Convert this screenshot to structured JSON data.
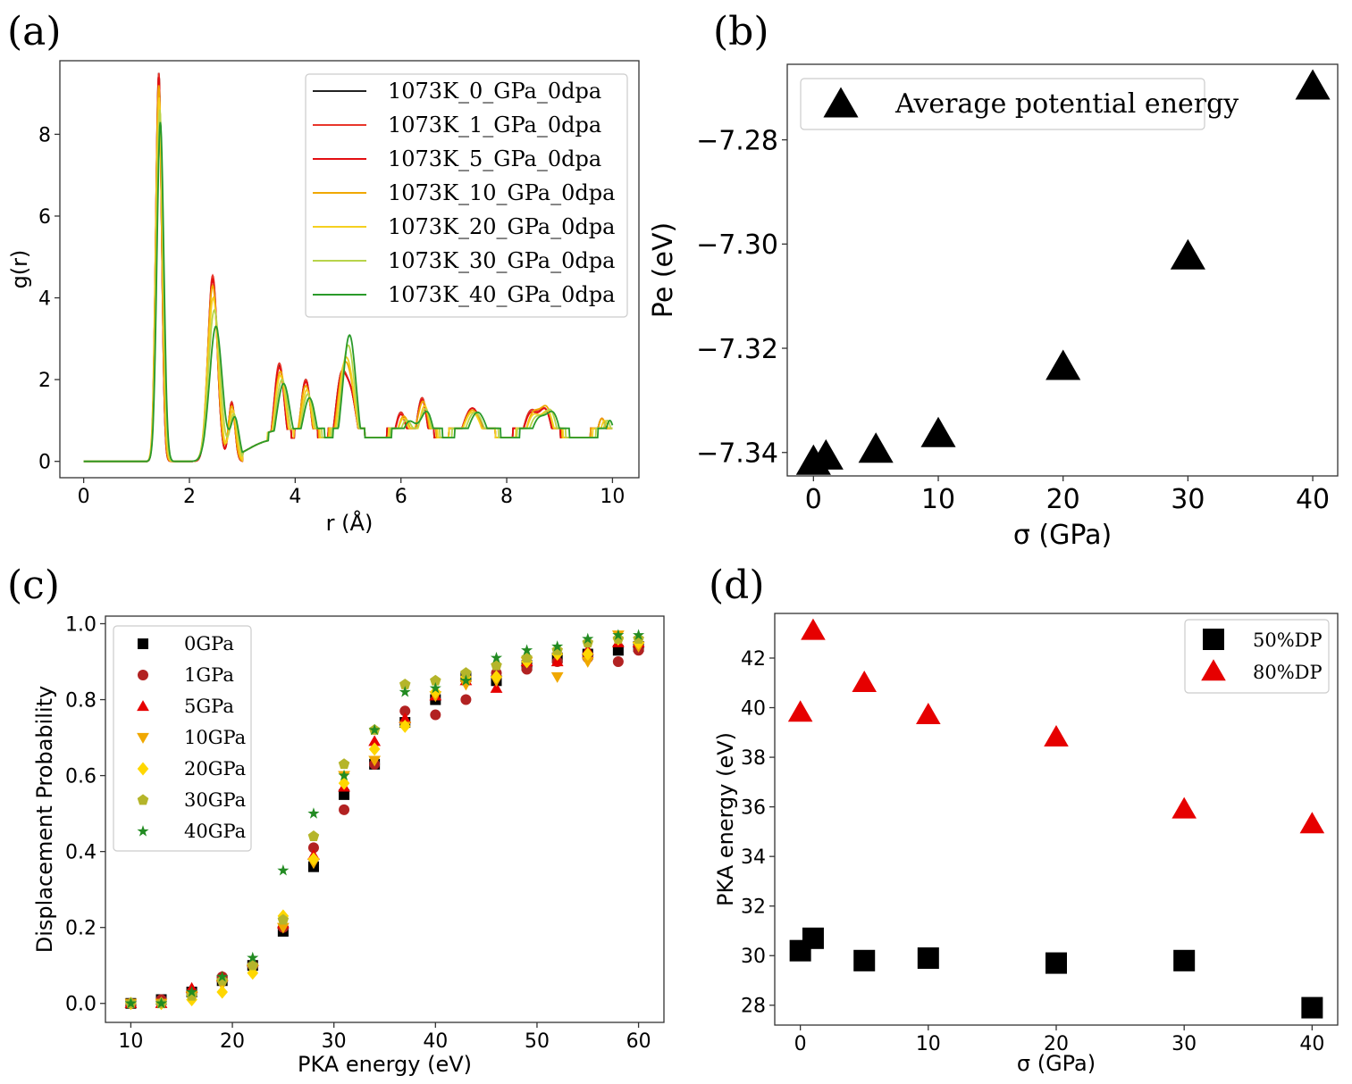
{
  "figure": {
    "panel_labels": [
      "(a)",
      "(b)",
      "(c)",
      "(d)"
    ]
  },
  "chart_data": [
    {
      "id": "a",
      "type": "line",
      "xlabel": "r (Å)",
      "ylabel": "g(r)",
      "xlim": [
        -0.45,
        10.5
      ],
      "ylim": [
        -0.4,
        9.8
      ],
      "xticks": [
        0,
        2,
        4,
        6,
        8,
        10
      ],
      "yticks": [
        0,
        2,
        4,
        6,
        8
      ],
      "legend_position": "upper-right",
      "series": [
        {
          "name": "1073K_0_GPa_0dpa",
          "color": "#222222",
          "peaks": [
            [
              1.42,
              9.5,
              0.055
            ],
            [
              2.44,
              4.5,
              0.09
            ],
            [
              2.8,
              1.45,
              0.06
            ],
            [
              3.7,
              2.35,
              0.1
            ],
            [
              4.2,
              2.0,
              0.1
            ],
            [
              4.85,
              1.7,
              0.1
            ],
            [
              5.05,
              1.6,
              0.12
            ],
            [
              6.0,
              1.2,
              0.12
            ],
            [
              6.4,
              1.55,
              0.1
            ],
            [
              7.35,
              1.3,
              0.2
            ],
            [
              8.45,
              1.2,
              0.15
            ],
            [
              8.75,
              1.1,
              0.12
            ],
            [
              9.8,
              1.05,
              0.1
            ]
          ]
        },
        {
          "name": "1073K_1_GPa_0dpa",
          "color": "#e8362b",
          "peaks": [
            [
              1.42,
              9.5,
              0.055
            ],
            [
              2.44,
              4.55,
              0.09
            ],
            [
              2.8,
              1.45,
              0.06
            ],
            [
              3.7,
              2.4,
              0.1
            ],
            [
              4.2,
              2.0,
              0.1
            ],
            [
              4.85,
              1.7,
              0.1
            ],
            [
              5.05,
              1.6,
              0.12
            ],
            [
              6.0,
              1.2,
              0.12
            ],
            [
              6.4,
              1.55,
              0.1
            ],
            [
              7.35,
              1.3,
              0.2
            ],
            [
              8.45,
              1.2,
              0.15
            ],
            [
              8.75,
              1.1,
              0.12
            ],
            [
              9.8,
              1.05,
              0.1
            ]
          ]
        },
        {
          "name": "1073K_5_GPa_0dpa",
          "color": "#e30e12",
          "peaks": [
            [
              1.42,
              9.4,
              0.055
            ],
            [
              2.44,
              4.45,
              0.09
            ],
            [
              2.8,
              1.4,
              0.06
            ],
            [
              3.7,
              2.3,
              0.1
            ],
            [
              4.2,
              1.95,
              0.1
            ],
            [
              4.85,
              1.65,
              0.1
            ],
            [
              5.05,
              1.6,
              0.12
            ],
            [
              6.0,
              1.15,
              0.12
            ],
            [
              6.4,
              1.5,
              0.1
            ],
            [
              7.35,
              1.3,
              0.2
            ],
            [
              8.45,
              1.15,
              0.15
            ],
            [
              8.75,
              1.1,
              0.12
            ],
            [
              9.8,
              1.05,
              0.1
            ]
          ]
        },
        {
          "name": "1073K_10_GPa_0dpa",
          "color": "#f0a800",
          "peaks": [
            [
              1.42,
              9.2,
              0.058
            ],
            [
              2.44,
              4.3,
              0.095
            ],
            [
              2.8,
              1.35,
              0.065
            ],
            [
              3.72,
              2.2,
              0.11
            ],
            [
              4.2,
              1.85,
              0.11
            ],
            [
              4.88,
              1.6,
              0.11
            ],
            [
              5.05,
              1.6,
              0.12
            ],
            [
              6.05,
              1.1,
              0.13
            ],
            [
              6.42,
              1.45,
              0.11
            ],
            [
              7.35,
              1.25,
              0.2
            ],
            [
              8.5,
              1.15,
              0.15
            ],
            [
              8.78,
              1.1,
              0.12
            ],
            [
              9.8,
              1.05,
              0.1
            ]
          ]
        },
        {
          "name": "1073K_20_GPa_0dpa",
          "color": "#f5d020",
          "peaks": [
            [
              1.43,
              8.9,
              0.06
            ],
            [
              2.45,
              4.0,
              0.1
            ],
            [
              2.82,
              1.25,
              0.07
            ],
            [
              3.72,
              2.1,
              0.11
            ],
            [
              4.22,
              1.75,
              0.11
            ],
            [
              4.9,
              1.55,
              0.11
            ],
            [
              5.05,
              1.6,
              0.12
            ],
            [
              6.05,
              1.05,
              0.13
            ],
            [
              6.45,
              1.35,
              0.11
            ],
            [
              7.35,
              1.2,
              0.2
            ],
            [
              8.5,
              1.1,
              0.15
            ],
            [
              8.8,
              1.05,
              0.12
            ],
            [
              9.85,
              1.0,
              0.1
            ]
          ]
        },
        {
          "name": "1073K_30_GPa_0dpa",
          "color": "#b8d44a",
          "peaks": [
            [
              1.44,
              8.6,
              0.062
            ],
            [
              2.47,
              3.7,
              0.11
            ],
            [
              2.84,
              1.15,
              0.075
            ],
            [
              3.75,
              2.0,
              0.12
            ],
            [
              4.24,
              1.65,
              0.12
            ],
            [
              4.95,
              1.5,
              0.12
            ],
            [
              5.05,
              1.6,
              0.12
            ],
            [
              6.1,
              1.0,
              0.14
            ],
            [
              6.47,
              1.25,
              0.12
            ],
            [
              7.4,
              1.2,
              0.2
            ],
            [
              8.55,
              1.05,
              0.16
            ],
            [
              8.85,
              1.05,
              0.12
            ],
            [
              9.9,
              1.0,
              0.1
            ]
          ]
        },
        {
          "name": "1073K_40_GPa_0dpa",
          "color": "#2a9a2a",
          "peaks": [
            [
              1.45,
              8.3,
              0.065
            ],
            [
              2.5,
              3.3,
              0.12
            ],
            [
              2.86,
              1.05,
              0.08
            ],
            [
              3.78,
              1.9,
              0.13
            ],
            [
              4.27,
              1.55,
              0.13
            ],
            [
              5.0,
              1.55,
              0.13
            ],
            [
              5.05,
              1.6,
              0.12
            ],
            [
              6.15,
              0.95,
              0.15
            ],
            [
              6.5,
              1.15,
              0.13
            ],
            [
              7.45,
              1.2,
              0.2
            ],
            [
              8.6,
              1.0,
              0.16
            ],
            [
              8.9,
              1.0,
              0.13
            ],
            [
              9.95,
              1.0,
              0.1
            ]
          ]
        }
      ]
    },
    {
      "id": "b",
      "type": "scatter",
      "xlabel": "σ (GPa)",
      "ylabel": "Pe (eV)",
      "xlim": [
        -2.1,
        42.0
      ],
      "ylim": [
        -7.3445,
        -7.2655
      ],
      "xticks": [
        0,
        10,
        20,
        30,
        40
      ],
      "xtick_labels": [
        "0",
        "10",
        "20",
        "30",
        "40"
      ],
      "yticks": [
        -7.34,
        -7.32,
        -7.3,
        -7.28
      ],
      "ytick_labels": [
        "−7.34",
        "−7.32",
        "−7.30",
        "−7.28"
      ],
      "legend_position": "upper-left",
      "series": [
        {
          "name": "Average potential energy",
          "marker": "triangle",
          "color": "#000000",
          "x": [
            0,
            1,
            5,
            10,
            20,
            30,
            40
          ],
          "y": [
            -7.3418,
            -7.3408,
            -7.3395,
            -7.3365,
            -7.3236,
            -7.3024,
            -7.2698
          ]
        }
      ]
    },
    {
      "id": "c",
      "type": "scatter",
      "xlabel": "PKA energy (eV)",
      "ylabel": "Displacement Probability",
      "xlim": [
        7.5,
        62.5
      ],
      "ylim": [
        -0.05,
        1.02
      ],
      "xticks": [
        10,
        20,
        30,
        40,
        50,
        60
      ],
      "xtick_labels": [
        "10",
        "20",
        "30",
        "40",
        "50",
        "60"
      ],
      "yticks": [
        0.0,
        0.2,
        0.4,
        0.6,
        0.8,
        1.0
      ],
      "ytick_labels": [
        "0.0",
        "0.2",
        "0.4",
        "0.6",
        "0.8",
        "1.0"
      ],
      "legend_position": "upper-left",
      "x": [
        10,
        13,
        16,
        19,
        22,
        25,
        28,
        31,
        34,
        37,
        40,
        43,
        46,
        49,
        52,
        55,
        58,
        60
      ],
      "series": [
        {
          "name": "0GPa",
          "marker": "square",
          "color": "#000000",
          "values": [
            0.0,
            0.01,
            0.03,
            0.06,
            0.1,
            0.19,
            0.36,
            0.55,
            0.63,
            0.74,
            0.8,
            0.86,
            0.85,
            0.89,
            0.91,
            0.92,
            0.93,
            0.94
          ]
        },
        {
          "name": "1GPa",
          "marker": "circle",
          "color": "#b22222",
          "values": [
            0.0,
            0.01,
            0.03,
            0.07,
            0.1,
            0.2,
            0.41,
            0.51,
            0.63,
            0.77,
            0.76,
            0.8,
            0.87,
            0.88,
            0.9,
            0.91,
            0.9,
            0.93
          ]
        },
        {
          "name": "5GPa",
          "marker": "triangle",
          "color": "#e60000",
          "values": [
            0.0,
            0.0,
            0.04,
            0.07,
            0.11,
            0.21,
            0.39,
            0.57,
            0.69,
            0.75,
            0.81,
            0.85,
            0.83,
            0.9,
            0.9,
            0.93,
            0.95,
            0.95
          ]
        },
        {
          "name": "10GPa",
          "marker": "triangle-down",
          "color": "#f0a800",
          "values": [
            0.0,
            0.0,
            0.02,
            0.05,
            0.09,
            0.2,
            0.37,
            0.6,
            0.64,
            0.73,
            0.81,
            0.84,
            0.85,
            0.9,
            0.86,
            0.9,
            0.97,
            0.94
          ]
        },
        {
          "name": "20GPa",
          "marker": "diamond",
          "color": "#ffd700",
          "values": [
            0.0,
            0.0,
            0.01,
            0.03,
            0.08,
            0.23,
            0.38,
            0.58,
            0.67,
            0.73,
            0.82,
            0.86,
            0.86,
            0.9,
            0.92,
            0.92,
            0.96,
            0.95
          ]
        },
        {
          "name": "30GPa",
          "marker": "pentagon",
          "color": "#b5b52a",
          "values": [
            0.0,
            0.0,
            0.02,
            0.06,
            0.1,
            0.22,
            0.44,
            0.63,
            0.72,
            0.84,
            0.85,
            0.87,
            0.89,
            0.91,
            0.93,
            0.95,
            0.96,
            0.96
          ]
        },
        {
          "name": "40GPa",
          "marker": "star",
          "color": "#228b22",
          "values": [
            0.0,
            0.0,
            0.03,
            0.07,
            0.12,
            0.35,
            0.5,
            0.6,
            0.72,
            0.82,
            0.83,
            0.85,
            0.91,
            0.93,
            0.94,
            0.96,
            0.97,
            0.97
          ]
        }
      ]
    },
    {
      "id": "d",
      "type": "scatter",
      "xlabel": "σ (GPa)",
      "ylabel": "PKA energy (eV)",
      "xlim": [
        -2.0,
        42.0
      ],
      "ylim": [
        27.2,
        43.8
      ],
      "xticks": [
        0,
        10,
        20,
        30,
        40
      ],
      "xtick_labels": [
        "0",
        "10",
        "20",
        "30",
        "40"
      ],
      "yticks": [
        28,
        30,
        32,
        34,
        36,
        38,
        40,
        42
      ],
      "ytick_labels": [
        "28",
        "30",
        "32",
        "34",
        "36",
        "38",
        "40",
        "42"
      ],
      "legend_position": "upper-right",
      "series": [
        {
          "name": "50%DP",
          "marker": "square",
          "color": "#000000",
          "x": [
            0,
            1,
            5,
            10,
            20,
            30,
            40
          ],
          "y": [
            30.2,
            30.7,
            29.8,
            29.9,
            29.7,
            29.8,
            27.9
          ]
        },
        {
          "name": "80%DP",
          "marker": "triangle",
          "color": "#e60000",
          "x": [
            0,
            1,
            5,
            10,
            20,
            30,
            40
          ],
          "y": [
            39.8,
            43.1,
            41.0,
            39.7,
            38.8,
            35.9,
            35.3
          ]
        }
      ]
    }
  ]
}
